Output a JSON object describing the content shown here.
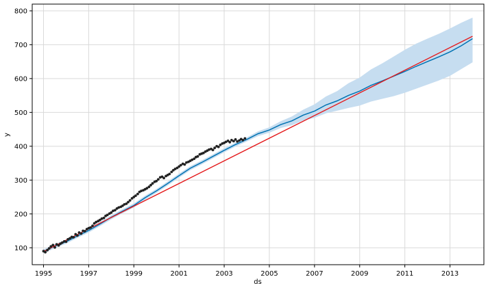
{
  "chart_data": {
    "type": "line",
    "title": "",
    "xlabel": "ds",
    "ylabel": "y",
    "xlim": [
      1994.5,
      2014.5
    ],
    "ylim": [
      50,
      820
    ],
    "xticks": [
      1995,
      1997,
      1999,
      2001,
      2003,
      2005,
      2007,
      2009,
      2011,
      2013
    ],
    "xtick_labels": [
      "1995",
      "1997",
      "1999",
      "2001",
      "2003",
      "2005",
      "2007",
      "2009",
      "2011",
      "2013"
    ],
    "yticks": [
      100,
      200,
      300,
      400,
      500,
      600,
      700,
      800
    ],
    "ytick_labels": [
      "100",
      "200",
      "300",
      "400",
      "500",
      "600",
      "700",
      "800"
    ],
    "grid": true,
    "colors": {
      "observed": "#222222",
      "forecast": "#0072B2",
      "interval": "#c6ddf0",
      "trend": "#e41a1c",
      "grid": "#d9d9d9",
      "spine": "#000000"
    },
    "series": [
      {
        "role": "observed",
        "x": [
          1995.0,
          1995.08,
          1995.17,
          1995.25,
          1995.33,
          1995.42,
          1995.5,
          1995.58,
          1995.67,
          1995.75,
          1995.83,
          1995.92,
          1996.0,
          1996.08,
          1996.17,
          1996.25,
          1996.33,
          1996.42,
          1996.5,
          1996.58,
          1996.67,
          1996.75,
          1996.83,
          1996.92,
          1997.0,
          1997.08,
          1997.17,
          1997.25,
          1997.33,
          1997.42,
          1997.5,
          1997.58,
          1997.67,
          1997.75,
          1997.83,
          1997.92,
          1998.0,
          1998.08,
          1998.17,
          1998.25,
          1998.33,
          1998.42,
          1998.5,
          1998.58,
          1998.67,
          1998.75,
          1998.83,
          1998.92,
          1999.0,
          1999.08,
          1999.17,
          1999.25,
          1999.33,
          1999.42,
          1999.5,
          1999.58,
          1999.67,
          1999.75,
          1999.83,
          1999.92,
          2000.0,
          2000.08,
          2000.17,
          2000.25,
          2000.33,
          2000.42,
          2000.5,
          2000.58,
          2000.67,
          2000.75,
          2000.83,
          2000.92,
          2001.0,
          2001.08,
          2001.17,
          2001.25,
          2001.33,
          2001.42,
          2001.5,
          2001.58,
          2001.67,
          2001.75,
          2001.83,
          2001.92,
          2002.0,
          2002.08,
          2002.17,
          2002.25,
          2002.33,
          2002.42,
          2002.5,
          2002.58,
          2002.67,
          2002.75,
          2002.83,
          2002.92,
          2003.0,
          2003.08,
          2003.17,
          2003.25,
          2003.33,
          2003.42,
          2003.5,
          2003.58,
          2003.67,
          2003.75,
          2003.83,
          2003.92
        ],
        "y": [
          90,
          87,
          93,
          98,
          104,
          108,
          101,
          110,
          107,
          112,
          115,
          119,
          118,
          125,
          128,
          132,
          131,
          140,
          136,
          145,
          142,
          150,
          149,
          155,
          158,
          160,
          165,
          172,
          176,
          179,
          182,
          186,
          188,
          194,
          197,
          201,
          204,
          209,
          211,
          216,
          219,
          221,
          224,
          228,
          230,
          235,
          240,
          246,
          250,
          254,
          259,
          265,
          268,
          270,
          273,
          276,
          280,
          285,
          290,
          295,
          297,
          302,
          308,
          310,
          306,
          312,
          315,
          318,
          324,
          329,
          333,
          336,
          340,
          344,
          348,
          346,
          352,
          354,
          357,
          360,
          363,
          368,
          370,
          376,
          378,
          380,
          384,
          387,
          390,
          392,
          389,
          395,
          400,
          398,
          404,
          408,
          410,
          413,
          416,
          412,
          418,
          415,
          420,
          414,
          417,
          421,
          418,
          423
        ]
      },
      {
        "role": "forecast",
        "x": [
          1995.0,
          1995.5,
          1996.0,
          1996.5,
          1997.0,
          1997.5,
          1998.0,
          1998.5,
          1999.0,
          1999.5,
          2000.0,
          2000.5,
          2001.0,
          2001.5,
          2002.0,
          2002.5,
          2003.0,
          2003.5,
          2004.0,
          2004.5,
          2005.0,
          2005.5,
          2006.0,
          2006.5,
          2007.0,
          2007.5,
          2008.0,
          2008.5,
          2009.0,
          2009.5,
          2010.0,
          2010.5,
          2011.0,
          2011.5,
          2012.0,
          2012.5,
          2013.0,
          2013.5,
          2014.0
        ],
        "y": [
          89,
          105,
          118,
          135,
          151,
          170,
          190,
          208,
          225,
          248,
          268,
          290,
          313,
          335,
          352,
          370,
          388,
          405,
          420,
          437,
          448,
          464,
          475,
          492,
          504,
          522,
          534,
          550,
          563,
          580,
          593,
          607,
          621,
          636,
          650,
          664,
          679,
          697,
          718
        ],
        "lower": [
          83,
          99,
          112,
          129,
          145,
          164,
          184,
          202,
          219,
          242,
          262,
          284,
          307,
          329,
          346,
          364,
          382,
          399,
          414,
          430,
          440,
          454,
          462,
          476,
          484,
          497,
          505,
          513,
          520,
          532,
          540,
          548,
          558,
          570,
          582,
          594,
          608,
          628,
          648
        ],
        "upper": [
          95,
          111,
          124,
          141,
          157,
          176,
          196,
          214,
          231,
          254,
          274,
          296,
          319,
          341,
          358,
          376,
          394,
          411,
          426,
          444,
          456,
          474,
          488,
          508,
          524,
          547,
          563,
          586,
          603,
          627,
          645,
          665,
          685,
          703,
          718,
          732,
          748,
          765,
          780
        ]
      },
      {
        "role": "trend",
        "x": [
          1995.0,
          2014.0
        ],
        "y": [
          89,
          725
        ]
      }
    ]
  }
}
